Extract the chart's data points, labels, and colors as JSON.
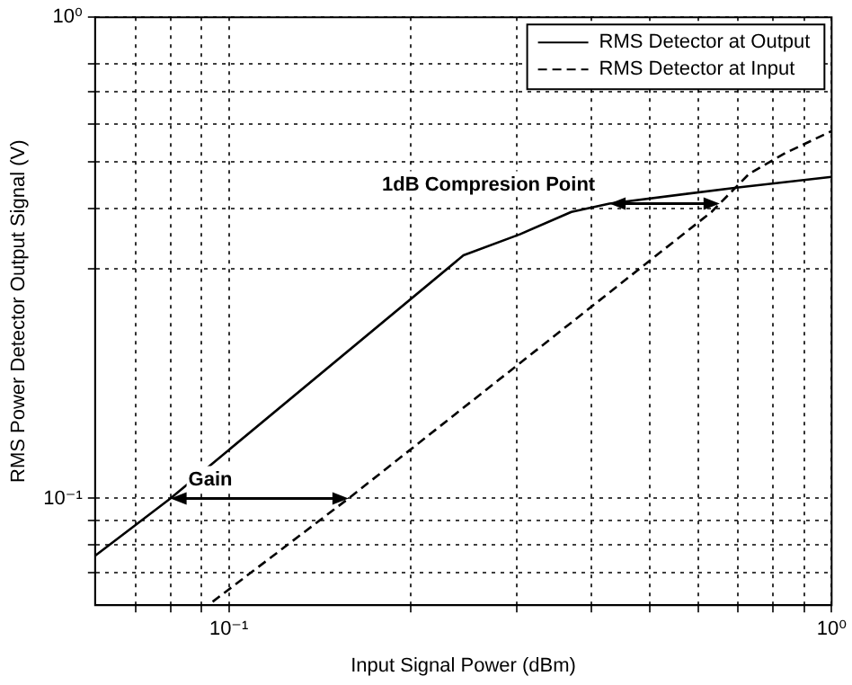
{
  "chart_data": {
    "type": "line",
    "xlabel": "Input Signal Power (dBm)",
    "ylabel": "RMS Power Detector Output Signal (V)",
    "log": "xy",
    "grid": true,
    "legend": "top right",
    "marker": "none",
    "xlim": [
      0.06,
      1
    ],
    "ylim": [
      0.06,
      1
    ],
    "xticks": [
      {
        "value": 0.07,
        "label": null
      },
      {
        "value": 0.08,
        "label": null
      },
      {
        "value": 0.09,
        "label": null
      },
      {
        "value": 0.1,
        "label": "10⁻¹"
      },
      {
        "value": 0.2,
        "label": null
      },
      {
        "value": 0.3,
        "label": null
      },
      {
        "value": 0.4,
        "label": null
      },
      {
        "value": 0.5,
        "label": null
      },
      {
        "value": 0.6,
        "label": null
      },
      {
        "value": 0.7,
        "label": null
      },
      {
        "value": 0.8,
        "label": null
      },
      {
        "value": 0.9,
        "label": null
      },
      {
        "value": 1,
        "label": "10⁰"
      }
    ],
    "yticks": [
      {
        "value": 0.07,
        "label": null
      },
      {
        "value": 0.08,
        "label": null
      },
      {
        "value": 0.09,
        "label": null
      },
      {
        "value": 0.1,
        "label": "10⁻¹"
      },
      {
        "value": 0.3,
        "label": null
      },
      {
        "value": 0.4,
        "label": null
      },
      {
        "value": 0.5,
        "label": null
      },
      {
        "value": 0.6,
        "label": null
      },
      {
        "value": 0.7,
        "label": null
      },
      {
        "value": 0.8,
        "label": null
      },
      {
        "value": 1,
        "label": "10⁰"
      }
    ],
    "series": [
      {
        "name": "RMS Detector at Output",
        "color": "#000000",
        "line_style": "solid",
        "x": [
          0.06,
          0.08,
          0.245,
          0.304,
          0.37,
          0.428,
          0.7,
          1
        ],
        "values": [
          0.076,
          0.1,
          0.32,
          0.354,
          0.394,
          0.41,
          0.443,
          0.466
        ]
      },
      {
        "name": "RMS Detector at Input",
        "color": "#000000",
        "line_style": "dashed",
        "x": [
          0.094,
          0.158,
          0.632,
          0.73,
          0.84,
          1
        ],
        "values": [
          0.061,
          0.1,
          0.394,
          0.473,
          0.523,
          0.58
        ]
      }
    ],
    "annotations": [
      {
        "text": "Gain",
        "x": 0.08,
        "y": 0.1
      },
      {
        "text": "1dB Compresion Point",
        "x": 0.428,
        "y": 0.41
      }
    ]
  }
}
